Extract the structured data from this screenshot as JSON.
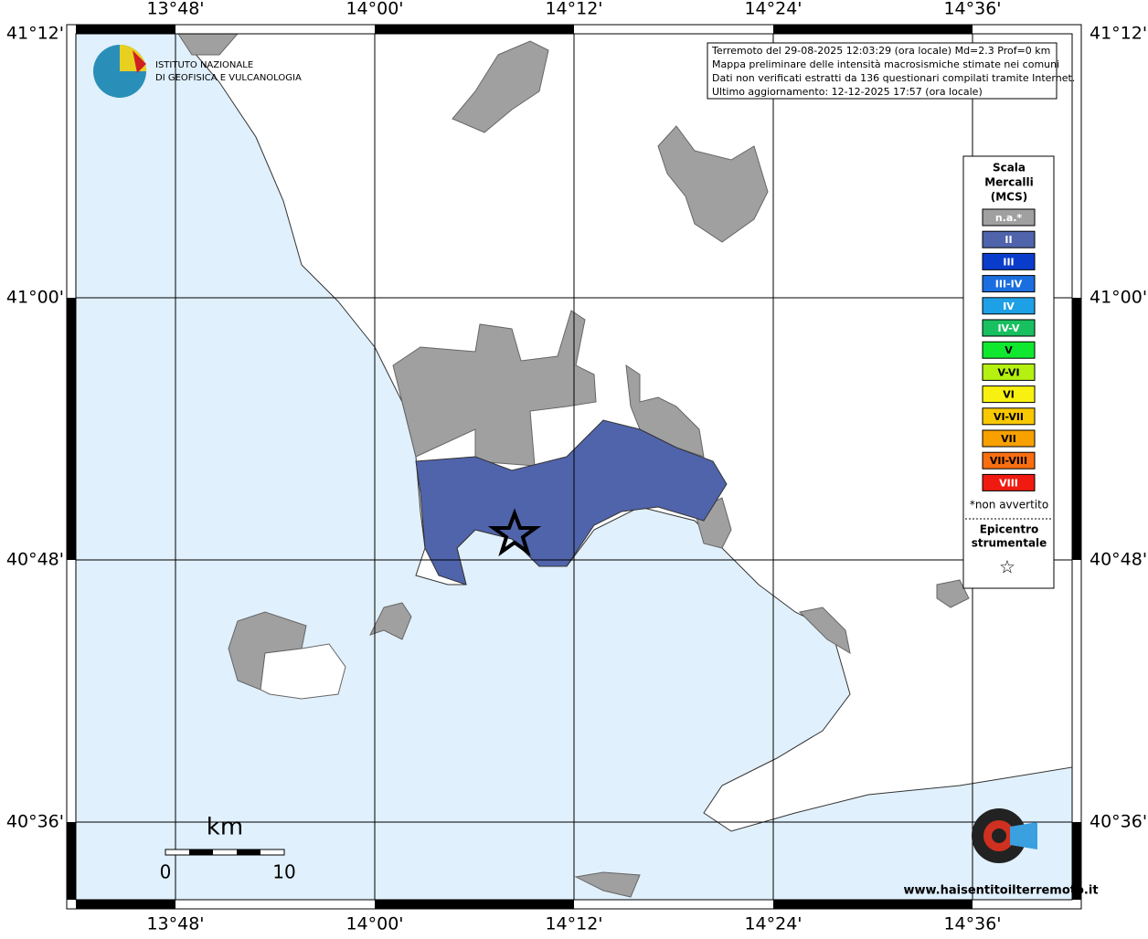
{
  "map": {
    "lon_labels": [
      "13°48'",
      "14°00'",
      "14°12'",
      "14°24'",
      "14°36'"
    ],
    "lat_labels": [
      "41°12'",
      "41°00'",
      "40°48'",
      "40°36'"
    ],
    "info": [
      "Terremoto del 29-08-2025 12:03:29 (ora locale) Md=2.3 Prof=0 km",
      "Mappa preliminare delle intensità macrosismiche stimate nei comuni",
      "Dati non verificati estratti da 136 questionari compilati tramite Internet.",
      "Ultimo aggiornamento: 12-12-2025 17:57 (ora locale)"
    ],
    "logo": [
      "ISTITUTO NAZIONALE",
      "DI GEOFISICA E VULCANOLOGIA"
    ],
    "legend": {
      "title": [
        "Scala",
        "Mercalli",
        "(MCS)"
      ],
      "entries": [
        {
          "name": "n.a.*",
          "color": "#a0a0a0"
        },
        {
          "name": "II",
          "color": "#5064ac"
        },
        {
          "name": "III",
          "color": "#0a3ccc"
        },
        {
          "name": "III-IV",
          "color": "#1a6ee0"
        },
        {
          "name": "IV",
          "color": "#1ea0e6"
        },
        {
          "name": "IV-V",
          "color": "#18c060"
        },
        {
          "name": "V",
          "color": "#10e830"
        },
        {
          "name": "V-VI",
          "color": "#b4f010"
        },
        {
          "name": "VI",
          "color": "#f8f010"
        },
        {
          "name": "VI-VII",
          "color": "#f8c800"
        },
        {
          "name": "VII",
          "color": "#f8a000"
        },
        {
          "name": "VII-VIII",
          "color": "#f86e10"
        },
        {
          "name": "VIII",
          "color": "#f01a10"
        }
      ],
      "note": "*non avvertito",
      "epicenter": [
        "Epicentro",
        "strumentale"
      ],
      "epicenter_symbol": "☆"
    },
    "scale": {
      "unit": "km",
      "start": "0",
      "end": "10"
    },
    "watermark": "www.haisentitoilterremoto.it"
  }
}
